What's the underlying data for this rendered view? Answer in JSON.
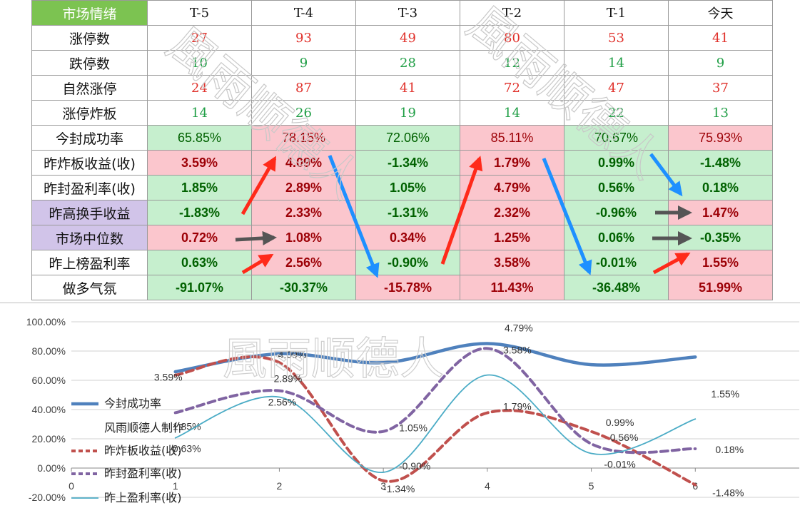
{
  "table": {
    "corner": "市场情绪",
    "columns": [
      "T-5",
      "T-4",
      "T-3",
      "T-2",
      "T-1",
      "今天"
    ],
    "rows": [
      {
        "label": "涨停数",
        "values": [
          "27",
          "93",
          "49",
          "80",
          "53",
          "41"
        ],
        "kind": "plain",
        "tone": "up",
        "label_style": "plain"
      },
      {
        "label": "跌停数",
        "values": [
          "10",
          "9",
          "28",
          "12",
          "14",
          "9"
        ],
        "kind": "plain",
        "tone": "down",
        "label_style": "plain"
      },
      {
        "label": "自然涨停",
        "values": [
          "24",
          "87",
          "41",
          "72",
          "47",
          "37"
        ],
        "kind": "plain",
        "tone": "up",
        "label_style": "plain"
      },
      {
        "label": "涨停炸板",
        "values": [
          "14",
          "26",
          "19",
          "14",
          "22",
          "13"
        ],
        "kind": "plain",
        "tone": "down",
        "label_style": "plain"
      },
      {
        "label": "今封成功率",
        "values": [
          "65.85%",
          "78.15%",
          "72.06%",
          "85.11%",
          "70.67%",
          "75.93%"
        ],
        "kind": "pct",
        "fills": [
          "neg",
          "pos",
          "neg",
          "pos",
          "neg",
          "pos"
        ],
        "label_style": "plain"
      },
      {
        "label": "昨炸板收益(收)",
        "values": [
          "3.59%",
          "4.09%",
          "-1.34%",
          "1.79%",
          "0.99%",
          "-1.48%"
        ],
        "kind": "bold",
        "fills": [
          "pos",
          "pos",
          "neg",
          "pos",
          "neg",
          "neg"
        ],
        "label_style": "plain"
      },
      {
        "label": "昨封盈利率(收)",
        "values": [
          "1.85%",
          "2.89%",
          "1.05%",
          "4.79%",
          "0.56%",
          "0.18%"
        ],
        "kind": "bold",
        "fills": [
          "neg",
          "pos",
          "neg",
          "pos",
          "neg",
          "neg"
        ],
        "label_style": "plain"
      },
      {
        "label": "昨高换手收益",
        "values": [
          "-1.83%",
          "2.33%",
          "-1.31%",
          "2.32%",
          "-0.96%",
          "1.47%"
        ],
        "kind": "bold",
        "fills": [
          "neg",
          "pos",
          "neg",
          "pos",
          "neg",
          "pos"
        ],
        "label_style": "purple"
      },
      {
        "label": "市场中位数",
        "values": [
          "0.72%",
          "1.08%",
          "0.34%",
          "1.25%",
          "0.06%",
          "-0.35%"
        ],
        "kind": "bold",
        "fills": [
          "pos",
          "pos",
          "pos",
          "pos",
          "neg",
          "neg"
        ],
        "label_style": "purple"
      },
      {
        "label": "昨上榜盈利率",
        "values": [
          "0.63%",
          "2.56%",
          "-0.90%",
          "3.58%",
          "-0.01%",
          "1.55%"
        ],
        "kind": "bold",
        "fills": [
          "neg",
          "pos",
          "neg",
          "pos",
          "neg",
          "pos"
        ],
        "label_style": "plain"
      },
      {
        "label": "做多气氛",
        "values": [
          "-91.07%",
          "-30.37%",
          "-15.78%",
          "11.43%",
          "-36.48%",
          "51.99%"
        ],
        "kind": "bold",
        "fills": [
          "neg",
          "neg",
          "pos",
          "pos",
          "neg",
          "pos"
        ],
        "label_style": "plain"
      }
    ]
  },
  "watermark_text": "風雨顺德人",
  "chart_data": {
    "type": "line",
    "x": [
      1,
      2,
      3,
      4,
      5,
      6
    ],
    "xlim": [
      0,
      7
    ],
    "ylim": [
      -0.2,
      1.0
    ],
    "x_ticks": [
      "0",
      "1",
      "2",
      "3",
      "4",
      "5",
      "6"
    ],
    "y_ticks": [
      "100.00%",
      "80.00%",
      "60.00%",
      "40.00%",
      "20.00%",
      "0.00%",
      "-20.00%"
    ],
    "grid": true,
    "legend_position": "left",
    "series": [
      {
        "name": "今封成功率",
        "values": [
          0.6585,
          0.7815,
          0.7206,
          0.8511,
          0.7067,
          0.7593
        ],
        "color": "#4f81bd",
        "style": "solid-thick",
        "labels": [
          "",
          "",
          "",
          "",
          "",
          ""
        ]
      },
      {
        "name": "昨炸板收益(收)",
        "values": [
          0.6359,
          0.7209,
          -0.0866,
          0.3779,
          0.2499,
          -0.1148
        ],
        "color": "#c0504d",
        "style": "dashed",
        "labels": [
          "3.59%",
          "4.09%",
          "-1.34%",
          "1.79%",
          "0.99%",
          "-1.48%"
        ]
      },
      {
        "name": "昨封盈利率(收)",
        "values": [
          0.3785,
          0.5289,
          0.2505,
          0.8179,
          0.1656,
          0.1318
        ],
        "color": "#8064a2",
        "style": "dashed",
        "labels": [
          "1.85%",
          "2.89%",
          "1.05%",
          "4.79%",
          "0.56%",
          "0.18%"
        ]
      },
      {
        "name": "昨上盈利率(收)",
        "values": [
          0.2063,
          0.4856,
          -0.029,
          0.6358,
          0.0999,
          0.3355
        ],
        "color": "#4bacc6",
        "style": "solid-thin",
        "labels": [
          "0.63%",
          "2.56%",
          "-0.90%",
          "3.58%",
          "-0.01%",
          "1.55%"
        ]
      }
    ],
    "legend_extra_text": "风雨顺德人制作"
  }
}
